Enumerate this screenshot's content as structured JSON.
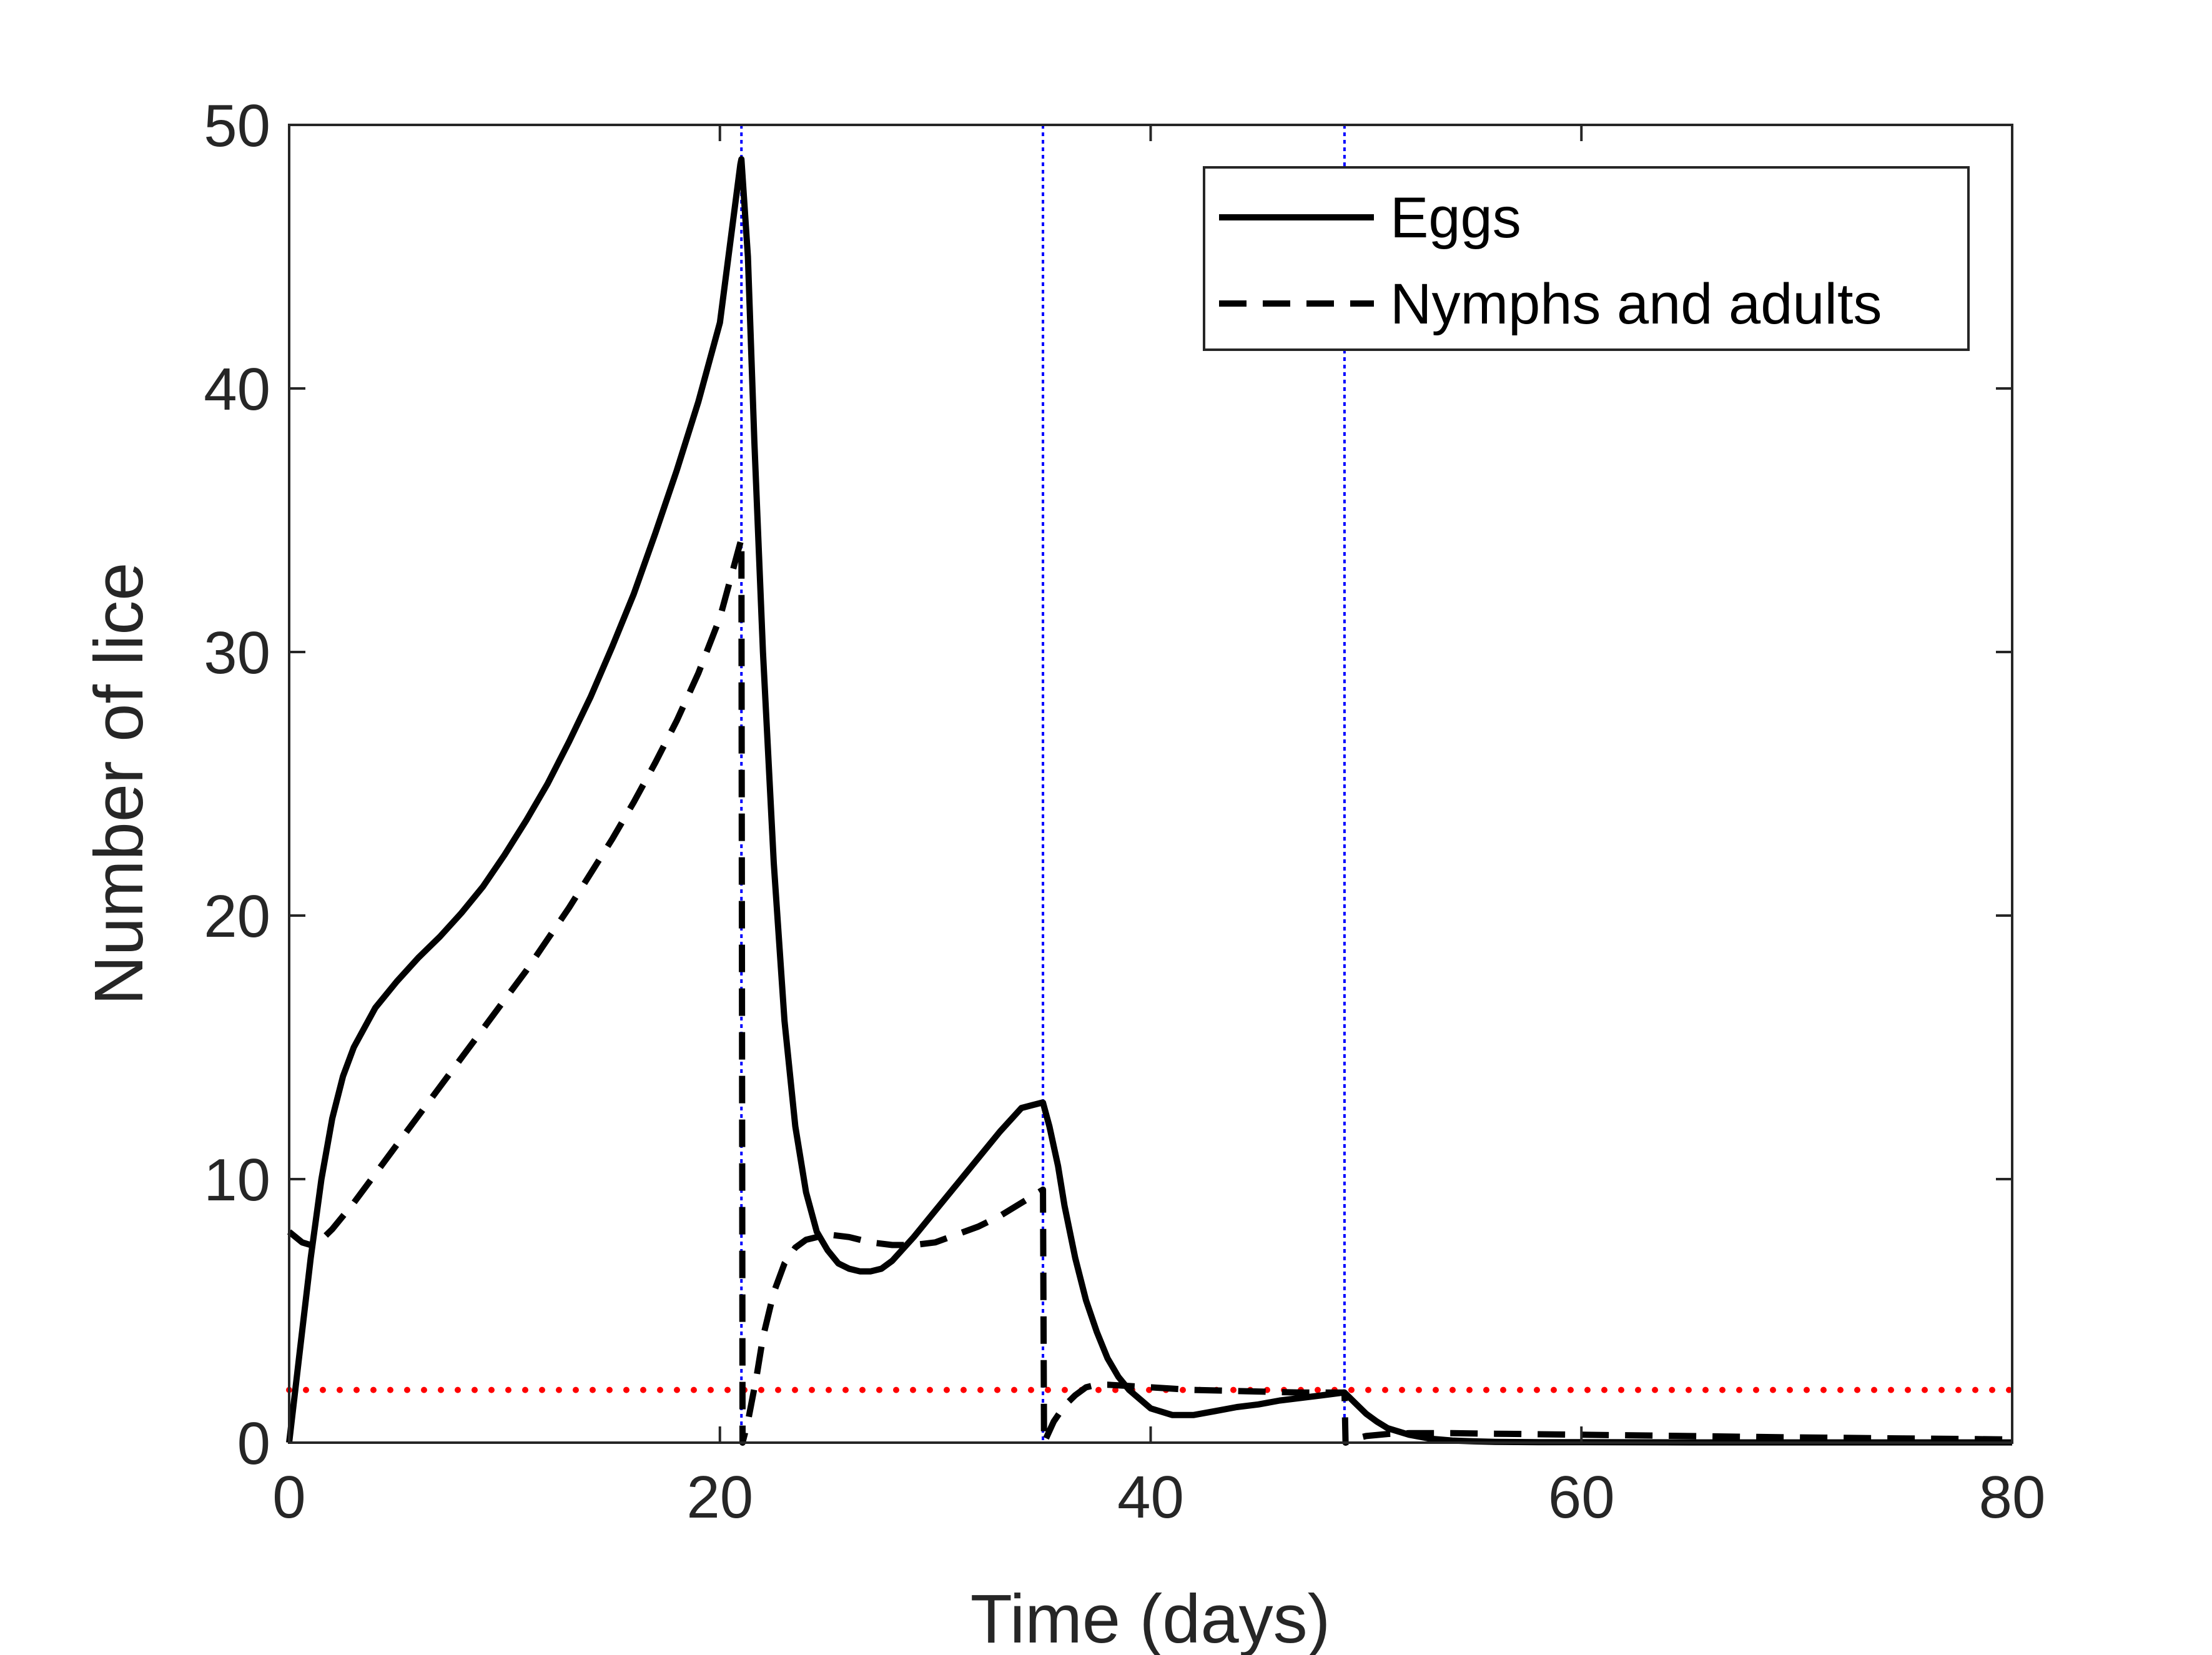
{
  "chart_data": {
    "type": "line",
    "xlabel": "Time (days)",
    "ylabel": "Number of lice",
    "xlim": [
      0,
      80
    ],
    "ylim": [
      0,
      50
    ],
    "xticks": [
      0,
      20,
      40,
      60,
      80
    ],
    "yticks": [
      0,
      10,
      20,
      30,
      40,
      50
    ],
    "legend_position": "top-right",
    "series": [
      {
        "name": "Eggs",
        "style": "solid",
        "color": "#000000",
        "x": [
          0,
          0.5,
          1,
          1.5,
          2,
          2.5,
          3,
          4,
          5,
          6,
          7,
          8,
          9,
          10,
          11,
          12,
          13,
          14,
          15,
          16,
          17,
          18,
          19,
          20,
          20.95,
          21,
          21.3,
          21.6,
          22,
          22.5,
          23,
          23.5,
          24,
          24.5,
          25,
          25.5,
          26,
          26.5,
          27,
          27.5,
          28,
          29,
          30,
          31,
          32,
          33,
          34,
          34.95,
          35,
          35.3,
          35.7,
          36,
          36.5,
          37,
          37.5,
          38,
          38.5,
          39,
          40,
          41,
          42,
          43,
          44,
          45,
          46,
          47,
          48,
          48.95,
          49,
          49.5,
          50,
          50.5,
          51,
          52,
          53,
          54,
          55,
          56,
          58,
          60,
          65,
          70,
          75,
          80
        ],
        "y": [
          0,
          3.5,
          7,
          10,
          12.3,
          13.9,
          15,
          16.5,
          17.5,
          18.4,
          19.2,
          20.1,
          21.1,
          22.3,
          23.6,
          25,
          26.6,
          28.3,
          30.2,
          32.2,
          34.5,
          36.9,
          39.5,
          42.5,
          48.5,
          48.7,
          45,
          38,
          30,
          22,
          16,
          12,
          9.5,
          8,
          7.3,
          6.8,
          6.6,
          6.5,
          6.5,
          6.6,
          6.9,
          7.8,
          8.8,
          9.8,
          10.8,
          11.8,
          12.7,
          12.9,
          12.9,
          12,
          10.5,
          9,
          7,
          5.4,
          4.2,
          3.2,
          2.5,
          2,
          1.3,
          1.05,
          1.05,
          1.2,
          1.35,
          1.45,
          1.6,
          1.7,
          1.8,
          1.9,
          1.9,
          1.5,
          1.1,
          0.8,
          0.55,
          0.3,
          0.15,
          0.08,
          0.05,
          0.03,
          0.02,
          0.02,
          0.01,
          0.01,
          0.01,
          0.01
        ]
      },
      {
        "name": "Nymphs and adults",
        "style": "dashed",
        "color": "#000000",
        "x": [
          0,
          0.3,
          0.6,
          1,
          1.5,
          2,
          3,
          4,
          5,
          6,
          7,
          8,
          9,
          10,
          11,
          12,
          13,
          14,
          15,
          16,
          17,
          18,
          19,
          20,
          21,
          21.05,
          21.3,
          21.7,
          22,
          22.5,
          23,
          23.5,
          24,
          25,
          26,
          27,
          28,
          29,
          30,
          31,
          32,
          33,
          34,
          35,
          35.05,
          35.5,
          36,
          36.5,
          37,
          37.5,
          38,
          39,
          40,
          41,
          42,
          43,
          44,
          45,
          46,
          47,
          48,
          49,
          49.05,
          49.5,
          50,
          51,
          52,
          54,
          56,
          58,
          60,
          65,
          70,
          75,
          80
        ],
        "y": [
          8,
          7.8,
          7.6,
          7.5,
          7.7,
          8.1,
          9.1,
          10.2,
          11.3,
          12.4,
          13.5,
          14.6,
          15.7,
          16.8,
          17.9,
          19.1,
          20.3,
          21.6,
          22.9,
          24.3,
          25.8,
          27.4,
          29.2,
          31.3,
          34.3,
          0,
          0.8,
          2.5,
          4,
          5.7,
          6.8,
          7.4,
          7.7,
          7.9,
          7.8,
          7.6,
          7.5,
          7.5,
          7.6,
          7.9,
          8.2,
          8.6,
          9.1,
          9.6,
          0,
          0.8,
          1.4,
          1.8,
          2.1,
          2.2,
          2.2,
          2.15,
          2.1,
          2.05,
          2,
          1.98,
          1.96,
          1.94,
          1.92,
          1.9,
          1.9,
          1.9,
          0,
          0.15,
          0.25,
          0.33,
          0.36,
          0.36,
          0.34,
          0.32,
          0.3,
          0.25,
          0.2,
          0.16,
          0.12
        ]
      }
    ],
    "threshold": {
      "y": 2,
      "style": "dotted",
      "color": "#ff0000"
    },
    "treatment_days": {
      "x": [
        21,
        35,
        49
      ],
      "style": "dotted",
      "color": "#0000ff"
    }
  }
}
